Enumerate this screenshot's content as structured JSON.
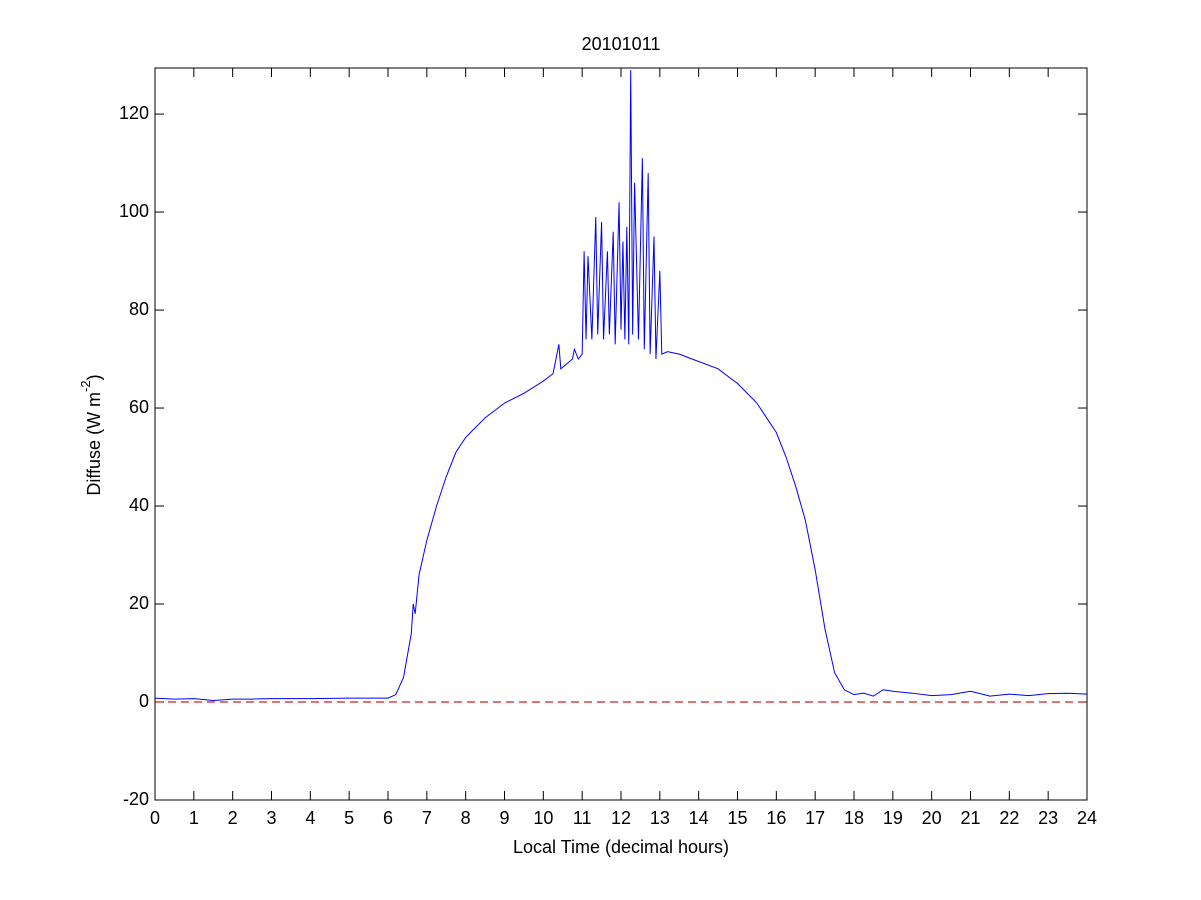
{
  "chart_data": {
    "type": "line",
    "title": "20101011",
    "xlabel": "Local Time (decimal hours)",
    "ylabel": [
      "Diffuse (W m",
      "-2",
      ")"
    ],
    "xlim": [
      0,
      24
    ],
    "xticks": [
      0,
      1,
      2,
      3,
      4,
      5,
      6,
      7,
      8,
      9,
      10,
      11,
      12,
      13,
      14,
      15,
      16,
      17,
      18,
      19,
      20,
      21,
      22,
      23,
      24
    ],
    "ylim": [
      -20,
      129.4
    ],
    "yticks": [
      -20,
      0,
      20,
      40,
      60,
      80,
      100,
      120
    ],
    "reference_line": {
      "value": 0,
      "color": "#cc2222",
      "dash": true
    },
    "series": [
      {
        "color": "#0000ff",
        "x": [
          0,
          0.5,
          1,
          1.5,
          2,
          2.5,
          3,
          4,
          5,
          5.5,
          6,
          6.2,
          6.4,
          6.6,
          6.65,
          6.7,
          6.8,
          7,
          7.25,
          7.5,
          7.75,
          8,
          8.25,
          8.5,
          8.75,
          9,
          9.5,
          10,
          10.25,
          10.4,
          10.45,
          10.75,
          10.8,
          10.9,
          11,
          11.05,
          11.1,
          11.15,
          11.25,
          11.35,
          11.4,
          11.5,
          11.55,
          11.65,
          11.7,
          11.8,
          11.85,
          11.95,
          12,
          12.05,
          12.1,
          12.15,
          12.2,
          12.25,
          12.3,
          12.35,
          12.45,
          12.55,
          12.6,
          12.7,
          12.75,
          12.85,
          12.9,
          13,
          13.05,
          13.2,
          13.5,
          14,
          14.5,
          15,
          15.5,
          16,
          16.25,
          16.5,
          16.75,
          17,
          17.25,
          17.5,
          17.75,
          18,
          18.25,
          18.5,
          18.75,
          19,
          19.5,
          20,
          20.5,
          21,
          21.5,
          22,
          22.5,
          23,
          23.5,
          24
        ],
        "values": [
          0.8,
          0.6,
          0.7,
          0.3,
          0.6,
          0.6,
          0.7,
          0.7,
          0.8,
          0.8,
          0.8,
          1.5,
          5,
          14,
          20,
          18,
          26,
          33,
          40,
          46,
          51,
          54,
          56,
          58,
          59.5,
          61,
          63,
          65.5,
          67,
          73,
          68,
          70,
          72,
          70,
          71,
          92,
          74,
          91,
          74,
          99,
          75,
          98,
          74,
          92,
          75,
          96,
          73,
          102,
          76,
          94,
          74,
          97,
          73,
          129,
          75,
          106,
          74,
          111,
          72,
          108,
          71,
          95,
          70,
          88,
          71,
          71.5,
          71,
          69.5,
          68,
          65,
          61,
          55,
          50,
          44,
          37,
          27,
          15,
          6,
          2.5,
          1.5,
          1.8,
          1.2,
          2.5,
          2.2,
          1.8,
          1.3,
          1.5,
          2.2,
          1.2,
          1.6,
          1.3,
          1.7,
          1.8,
          1.6
        ]
      }
    ]
  }
}
